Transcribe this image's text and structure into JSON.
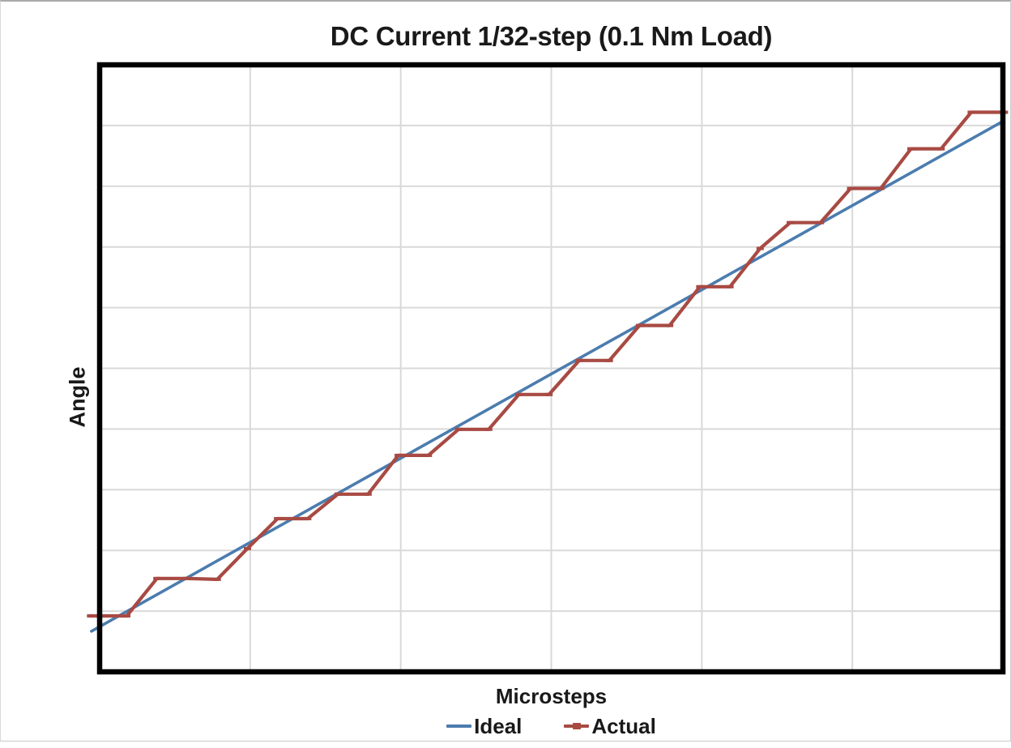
{
  "figure": {
    "title": "DC Current 1/32-step (0.1 Nm Load)",
    "x_axis_label": "Microsteps",
    "y_axis_label": "Angle",
    "legend": [
      {
        "label": "Ideal",
        "color": "#4B7CAE",
        "marker": "none"
      },
      {
        "label": "Actual",
        "color": "#A84A43",
        "marker": "dash"
      }
    ]
  },
  "chart_data": {
    "type": "line",
    "title": "DC Current 1/32-step (0.1 Nm Load)",
    "xlabel": "Microsteps",
    "ylabel": "Angle",
    "axis_tick_labels_visible": false,
    "legend_position": "bottom",
    "grid": {
      "x_divisions": 6,
      "y_divisions": 10
    },
    "x_range_at_plot_edges": [
      0.1,
      30.05
    ],
    "y_range_at_plot_edges": [
      -2.5,
      33.2
    ],
    "units_note": "no numeric ticks shown; x = microstep index, y = angle where ideal gains 1 unit per microstep",
    "colors": {
      "grid": "#D9D9D9",
      "plot_border": "#000000",
      "background": "#FFFFFF"
    },
    "series": [
      {
        "name": "Ideal",
        "color": "#4B7CAE",
        "marker": "none",
        "points": [
          [
            -0.17,
            -0.11
          ],
          [
            30.05,
            29.88
          ]
        ]
      },
      {
        "name": "Actual",
        "color": "#A84A43",
        "marker": "dash",
        "points": [
          [
            -0.2,
            0.79
          ],
          [
            1,
            0.79
          ],
          [
            2,
            2.99
          ],
          [
            3,
            2.99
          ],
          [
            4,
            2.94
          ],
          [
            5,
            4.75
          ],
          [
            6,
            6.51
          ],
          [
            7,
            6.51
          ],
          [
            8,
            7.95
          ],
          [
            9,
            7.95
          ],
          [
            10,
            10.23
          ],
          [
            11,
            10.23
          ],
          [
            12,
            11.76
          ],
          [
            13,
            11.76
          ],
          [
            14,
            13.81
          ],
          [
            15,
            13.81
          ],
          [
            16,
            15.81
          ],
          [
            17,
            15.81
          ],
          [
            18,
            17.87
          ],
          [
            19,
            17.87
          ],
          [
            20,
            20.15
          ],
          [
            21,
            20.15
          ],
          [
            22,
            22.4
          ],
          [
            23,
            23.92
          ],
          [
            24,
            23.92
          ],
          [
            25,
            25.93
          ],
          [
            26,
            25.93
          ],
          [
            27,
            28.26
          ],
          [
            28,
            28.26
          ],
          [
            29,
            30.41
          ],
          [
            30.1,
            30.41
          ]
        ]
      }
    ]
  }
}
